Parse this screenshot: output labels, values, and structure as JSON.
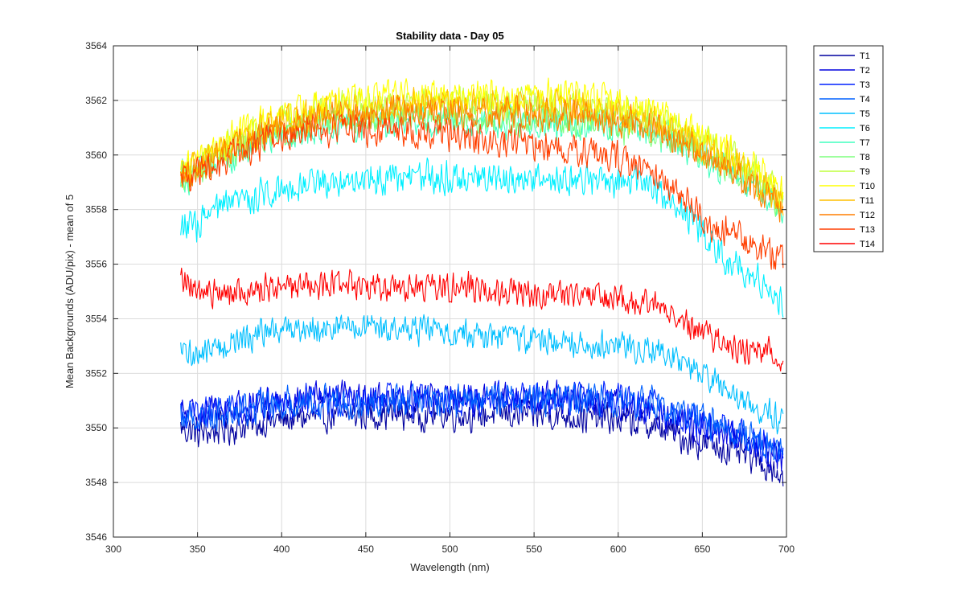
{
  "chart_data": {
    "type": "line",
    "title": "Stability data - Day 05",
    "xlabel": "Wavelength (nm)",
    "ylabel": "Mean Backgrounds (ADU/pix) - mean of 5",
    "xlim": [
      300,
      700
    ],
    "ylim": [
      3546,
      3564
    ],
    "xticks": [
      "300",
      "350",
      "400",
      "450",
      "500",
      "550",
      "600",
      "650",
      "700"
    ],
    "yticks": [
      "3546",
      "3548",
      "3550",
      "3552",
      "3554",
      "3556",
      "3558",
      "3560",
      "3562",
      "3564"
    ],
    "grid": true,
    "legend_position": "outside-top-right",
    "x": [
      340,
      345,
      350,
      360,
      370,
      380,
      390,
      400,
      420,
      440,
      460,
      480,
      500,
      520,
      540,
      560,
      580,
      600,
      620,
      630,
      640,
      650,
      660,
      670,
      680,
      690,
      698
    ],
    "series": [
      {
        "name": "T1",
        "color": "#00009f",
        "noise": 0.9,
        "values": [
          3550.0,
          3549.9,
          3549.8,
          3549.9,
          3550.0,
          3550.1,
          3550.2,
          3550.3,
          3550.4,
          3550.5,
          3550.5,
          3550.5,
          3550.5,
          3550.5,
          3550.5,
          3550.5,
          3550.4,
          3550.3,
          3550.1,
          3549.9,
          3549.6,
          3549.4,
          3549.3,
          3549.1,
          3548.9,
          3548.6,
          3548.2
        ]
      },
      {
        "name": "T2",
        "color": "#0000df",
        "noise": 0.9,
        "values": [
          3550.6,
          3550.5,
          3550.5,
          3550.6,
          3550.7,
          3550.8,
          3550.9,
          3551.0,
          3551.1,
          3551.1,
          3551.1,
          3551.1,
          3551.1,
          3551.1,
          3551.1,
          3551.1,
          3551.0,
          3550.9,
          3550.6,
          3550.4,
          3550.2,
          3550.0,
          3549.8,
          3549.6,
          3549.4,
          3549.1,
          3548.7
        ]
      },
      {
        "name": "T3",
        "color": "#0020ff",
        "noise": 0.9,
        "values": [
          3550.5,
          3550.5,
          3550.5,
          3550.6,
          3550.7,
          3550.8,
          3550.9,
          3550.9,
          3551.0,
          3551.0,
          3551.0,
          3551.0,
          3551.0,
          3551.0,
          3551.1,
          3551.1,
          3551.1,
          3551.0,
          3550.8,
          3550.6,
          3550.4,
          3550.2,
          3550.0,
          3549.8,
          3549.6,
          3549.3,
          3549.0
        ]
      },
      {
        "name": "T4",
        "color": "#0060ff",
        "noise": 0.9,
        "values": [
          3550.4,
          3550.4,
          3550.4,
          3550.5,
          3550.6,
          3550.7,
          3550.8,
          3550.9,
          3551.0,
          3551.0,
          3551.0,
          3551.0,
          3551.0,
          3551.1,
          3551.1,
          3551.1,
          3551.1,
          3551.0,
          3550.9,
          3550.7,
          3550.5,
          3550.3,
          3550.1,
          3549.9,
          3549.7,
          3549.4,
          3549.2
        ]
      },
      {
        "name": "T5",
        "color": "#00bfff",
        "noise": 0.8,
        "values": [
          3552.7,
          3552.7,
          3552.7,
          3552.9,
          3553.1,
          3553.3,
          3553.5,
          3553.6,
          3553.7,
          3553.7,
          3553.6,
          3553.6,
          3553.5,
          3553.4,
          3553.3,
          3553.2,
          3553.1,
          3553.0,
          3552.9,
          3552.7,
          3552.3,
          3551.9,
          3551.5,
          3551.1,
          3550.8,
          3550.5,
          3550.2
        ]
      },
      {
        "name": "T6",
        "color": "#00efff",
        "noise": 0.9,
        "values": [
          3557.5,
          3557.3,
          3557.4,
          3557.9,
          3558.2,
          3558.4,
          3558.6,
          3558.8,
          3559.0,
          3559.1,
          3559.1,
          3559.2,
          3559.2,
          3559.1,
          3559.1,
          3559.1,
          3559.1,
          3559.0,
          3558.9,
          3558.5,
          3557.8,
          3557.0,
          3556.4,
          3556.0,
          3555.6,
          3555.2,
          3554.6
        ]
      },
      {
        "name": "T7",
        "color": "#40ffbf",
        "noise": 0.9,
        "values": [
          3559.2,
          3559.2,
          3559.3,
          3559.6,
          3559.9,
          3560.2,
          3560.5,
          3560.8,
          3561.0,
          3561.1,
          3561.2,
          3561.2,
          3561.2,
          3561.2,
          3561.2,
          3561.1,
          3561.1,
          3561.0,
          3560.8,
          3560.6,
          3560.3,
          3559.9,
          3559.6,
          3559.3,
          3558.9,
          3558.4,
          3557.8
        ]
      },
      {
        "name": "T8",
        "color": "#7fff7f",
        "noise": 0.9,
        "values": [
          3559.3,
          3559.3,
          3559.4,
          3559.8,
          3560.1,
          3560.4,
          3560.7,
          3561.0,
          3561.2,
          3561.3,
          3561.4,
          3561.4,
          3561.4,
          3561.4,
          3561.3,
          3561.3,
          3561.2,
          3561.1,
          3560.9,
          3560.7,
          3560.4,
          3560.1,
          3559.8,
          3559.5,
          3559.1,
          3558.6,
          3558.0
        ]
      },
      {
        "name": "T9",
        "color": "#bfff3f",
        "noise": 0.9,
        "values": [
          3559.5,
          3559.5,
          3559.7,
          3560.0,
          3560.4,
          3560.7,
          3561.0,
          3561.3,
          3561.6,
          3561.8,
          3561.9,
          3561.9,
          3561.9,
          3561.9,
          3561.9,
          3561.9,
          3561.8,
          3561.6,
          3561.4,
          3561.1,
          3560.8,
          3560.5,
          3560.2,
          3559.8,
          3559.4,
          3558.9,
          3558.3
        ]
      },
      {
        "name": "T10",
        "color": "#ffff00",
        "noise": 0.9,
        "values": [
          3559.6,
          3559.6,
          3559.8,
          3560.2,
          3560.6,
          3560.9,
          3561.2,
          3561.5,
          3561.8,
          3562.0,
          3562.1,
          3562.2,
          3562.2,
          3562.2,
          3562.2,
          3562.2,
          3562.1,
          3561.9,
          3561.6,
          3561.3,
          3561.0,
          3560.7,
          3560.4,
          3560.0,
          3559.6,
          3559.1,
          3558.5
        ]
      },
      {
        "name": "T11",
        "color": "#ffbf00",
        "noise": 0.9,
        "values": [
          3559.5,
          3559.4,
          3559.6,
          3560.0,
          3560.3,
          3560.6,
          3560.9,
          3561.2,
          3561.5,
          3561.6,
          3561.7,
          3561.8,
          3561.8,
          3561.8,
          3561.8,
          3561.8,
          3561.7,
          3561.5,
          3561.2,
          3560.9,
          3560.6,
          3560.3,
          3560.0,
          3559.6,
          3559.2,
          3558.7,
          3558.1
        ]
      },
      {
        "name": "T12",
        "color": "#ff7f00",
        "noise": 0.9,
        "values": [
          3559.4,
          3559.3,
          3559.5,
          3559.9,
          3560.2,
          3560.5,
          3560.8,
          3561.0,
          3561.3,
          3561.4,
          3561.5,
          3561.6,
          3561.6,
          3561.6,
          3561.6,
          3561.5,
          3561.4,
          3561.3,
          3561.0,
          3560.7,
          3560.4,
          3560.1,
          3559.8,
          3559.4,
          3559.0,
          3558.5,
          3557.9
        ]
      },
      {
        "name": "T13",
        "color": "#ff3f00",
        "noise": 0.9,
        "values": [
          3559.2,
          3559.1,
          3559.3,
          3559.6,
          3559.9,
          3560.2,
          3560.5,
          3560.7,
          3560.9,
          3560.9,
          3560.9,
          3560.8,
          3560.7,
          3560.6,
          3560.5,
          3560.3,
          3560.1,
          3559.9,
          3559.4,
          3558.9,
          3558.3,
          3557.7,
          3557.3,
          3557.0,
          3556.7,
          3556.4,
          3556.1
        ]
      },
      {
        "name": "T14",
        "color": "#ff0000",
        "noise": 0.8,
        "values": [
          3555.5,
          3555.2,
          3555.0,
          3554.9,
          3555.0,
          3555.0,
          3555.1,
          3555.1,
          3555.1,
          3555.2,
          3555.2,
          3555.2,
          3555.2,
          3555.1,
          3555.0,
          3554.9,
          3554.8,
          3554.7,
          3554.5,
          3554.3,
          3553.9,
          3553.5,
          3553.2,
          3553.0,
          3552.9,
          3552.8,
          3552.6
        ]
      }
    ]
  }
}
